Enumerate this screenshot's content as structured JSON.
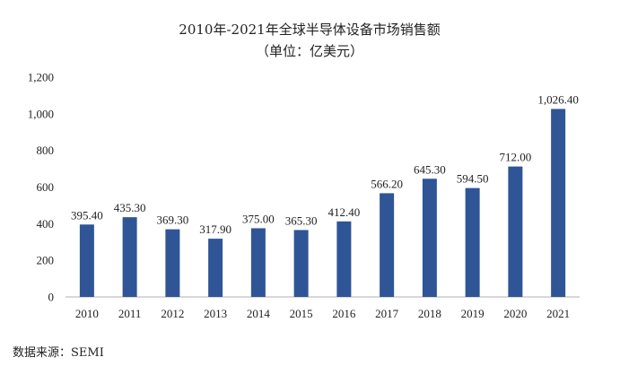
{
  "chart_data": {
    "type": "bar",
    "title": "2010年-2021年全球半导体设备市场销售额",
    "subtitle": "（单位：亿美元）",
    "categories": [
      "2010",
      "2011",
      "2012",
      "2013",
      "2014",
      "2015",
      "2016",
      "2017",
      "2018",
      "2019",
      "2020",
      "2021"
    ],
    "values": [
      395.4,
      435.3,
      369.3,
      317.9,
      375.0,
      365.3,
      412.4,
      566.2,
      645.3,
      594.5,
      712.0,
      1026.4
    ],
    "value_labels": [
      "395.40",
      "435.30",
      "369.30",
      "317.90",
      "375.00",
      "365.30",
      "412.40",
      "566.20",
      "645.30",
      "594.50",
      "712.00",
      "1,026.40"
    ],
    "y_ticks": [
      0,
      200,
      400,
      600,
      800,
      1000,
      1200
    ],
    "y_tick_labels": [
      "0",
      "200",
      "400",
      "600",
      "800",
      "1,000",
      "1,200"
    ],
    "ylim": [
      0,
      1200
    ],
    "xlabel": "",
    "ylabel": "",
    "grid": false,
    "bar_color": "#2f5597",
    "source": "数据来源：SEMI"
  }
}
